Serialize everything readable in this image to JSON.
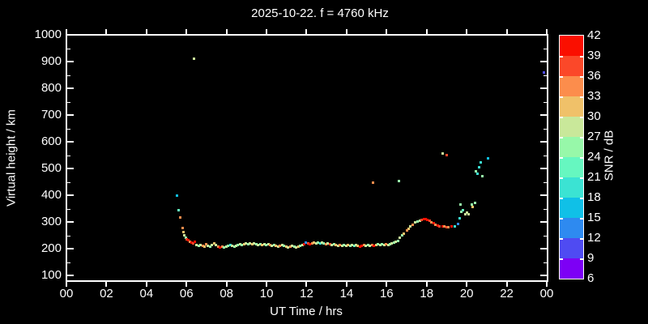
{
  "chart_data": {
    "type": "scatter",
    "title": "2025-10-22. f = 4760 kHz",
    "xlabel": "UT Time / hrs",
    "ylabel": "Virtual height / km",
    "colorbar_label": "SNR / dB",
    "background_color": "#000000",
    "axis_color": "#ffffff",
    "xlim": [
      0,
      24
    ],
    "ylim": [
      80,
      1000
    ],
    "grid": "off",
    "legend": "colorbar-right",
    "x_tick_values": [
      0,
      2,
      4,
      6,
      8,
      10,
      12,
      14,
      16,
      18,
      20,
      22,
      24
    ],
    "x_tick_labels": [
      "00",
      "02",
      "04",
      "06",
      "08",
      "10",
      "12",
      "14",
      "16",
      "18",
      "20",
      "22",
      "00"
    ],
    "y_tick_values": [
      100,
      200,
      300,
      400,
      500,
      600,
      700,
      800,
      900,
      1000
    ],
    "y_tick_labels": [
      "100",
      "200",
      "300",
      "400",
      "500",
      "600",
      "700",
      "800",
      "900",
      "1000"
    ],
    "snr_levels": [
      6,
      9,
      12,
      15,
      18,
      21,
      24,
      27,
      30,
      33,
      36,
      39,
      42
    ],
    "snr_colors": [
      "#7d00f5",
      "#4f4bf2",
      "#2e8af0",
      "#10c0e7",
      "#3be3d3",
      "#66f7c0",
      "#97f8a9",
      "#c9e89a",
      "#f0c169",
      "#fc8d4c",
      "#fb4829",
      "#fa0f00"
    ],
    "point_format": "[ut_hours, virtual_height_km, snr_color_index_low_to_high]",
    "points": [
      [
        5.52,
        400,
        3
      ],
      [
        5.6,
        345,
        5
      ],
      [
        5.67,
        316,
        9
      ],
      [
        5.8,
        276,
        9
      ],
      [
        5.84,
        262,
        8
      ],
      [
        5.9,
        250,
        7
      ],
      [
        5.96,
        242,
        6
      ],
      [
        6.02,
        235,
        10
      ],
      [
        6.08,
        232,
        11
      ],
      [
        6.16,
        227,
        9
      ],
      [
        6.24,
        223,
        11
      ],
      [
        6.32,
        220,
        10
      ],
      [
        6.42,
        226,
        11
      ],
      [
        6.5,
        214,
        7
      ],
      [
        6.6,
        211,
        6
      ],
      [
        6.7,
        214,
        7
      ],
      [
        6.8,
        211,
        9
      ],
      [
        6.9,
        208,
        8
      ],
      [
        7.0,
        217,
        9
      ],
      [
        7.08,
        211,
        7
      ],
      [
        7.18,
        208,
        6
      ],
      [
        7.28,
        214,
        7
      ],
      [
        7.38,
        220,
        8
      ],
      [
        7.48,
        214,
        7
      ],
      [
        7.58,
        208,
        9
      ],
      [
        7.68,
        205,
        11
      ],
      [
        7.78,
        208,
        9
      ],
      [
        7.88,
        205,
        6
      ],
      [
        7.98,
        208,
        7
      ],
      [
        8.08,
        211,
        6
      ],
      [
        8.18,
        214,
        4
      ],
      [
        8.28,
        211,
        7
      ],
      [
        8.38,
        208,
        6
      ],
      [
        8.48,
        211,
        7
      ],
      [
        8.58,
        214,
        6
      ],
      [
        8.68,
        217,
        7
      ],
      [
        8.78,
        214,
        6
      ],
      [
        8.88,
        217,
        8
      ],
      [
        8.98,
        220,
        7
      ],
      [
        9.08,
        217,
        6
      ],
      [
        9.18,
        220,
        7
      ],
      [
        9.28,
        217,
        8
      ],
      [
        9.38,
        220,
        7
      ],
      [
        9.48,
        217,
        6
      ],
      [
        9.58,
        214,
        7
      ],
      [
        9.68,
        217,
        6
      ],
      [
        9.78,
        214,
        8
      ],
      [
        9.88,
        217,
        7
      ],
      [
        9.98,
        214,
        6
      ],
      [
        10.08,
        217,
        7
      ],
      [
        10.18,
        214,
        9
      ],
      [
        10.28,
        211,
        7
      ],
      [
        10.38,
        214,
        6
      ],
      [
        10.48,
        211,
        8
      ],
      [
        10.58,
        208,
        7
      ],
      [
        10.68,
        211,
        9
      ],
      [
        10.78,
        214,
        7
      ],
      [
        10.88,
        211,
        6
      ],
      [
        10.98,
        208,
        8
      ],
      [
        11.08,
        205,
        7
      ],
      [
        11.18,
        208,
        9
      ],
      [
        11.28,
        211,
        7
      ],
      [
        11.38,
        208,
        6
      ],
      [
        11.48,
        205,
        7
      ],
      [
        11.58,
        208,
        8
      ],
      [
        11.68,
        211,
        6
      ],
      [
        11.78,
        214,
        7
      ],
      [
        11.88,
        217,
        11
      ],
      [
        11.97,
        223,
        2
      ],
      [
        12.07,
        220,
        10
      ],
      [
        12.17,
        217,
        11
      ],
      [
        12.27,
        220,
        9
      ],
      [
        12.37,
        223,
        8
      ],
      [
        12.47,
        220,
        7
      ],
      [
        12.57,
        223,
        6
      ],
      [
        12.67,
        220,
        4
      ],
      [
        12.77,
        223,
        7
      ],
      [
        12.87,
        220,
        6
      ],
      [
        12.97,
        217,
        9
      ],
      [
        13.07,
        220,
        7
      ],
      [
        13.17,
        217,
        10
      ],
      [
        13.27,
        214,
        7
      ],
      [
        13.37,
        217,
        6
      ],
      [
        13.47,
        214,
        8
      ],
      [
        13.57,
        211,
        7
      ],
      [
        13.67,
        214,
        9
      ],
      [
        13.77,
        211,
        7
      ],
      [
        13.87,
        214,
        6
      ],
      [
        13.97,
        211,
        7
      ],
      [
        14.07,
        214,
        8
      ],
      [
        14.17,
        211,
        6
      ],
      [
        14.27,
        214,
        7
      ],
      [
        14.37,
        211,
        5
      ],
      [
        14.47,
        214,
        7
      ],
      [
        14.57,
        211,
        8
      ],
      [
        14.67,
        208,
        11
      ],
      [
        14.77,
        211,
        11
      ],
      [
        14.87,
        214,
        9
      ],
      [
        14.97,
        211,
        7
      ],
      [
        15.07,
        214,
        6
      ],
      [
        15.17,
        211,
        7
      ],
      [
        15.27,
        214,
        9
      ],
      [
        15.37,
        211,
        11
      ],
      [
        15.47,
        214,
        8
      ],
      [
        15.57,
        217,
        6
      ],
      [
        15.67,
        214,
        7
      ],
      [
        15.77,
        217,
        6
      ],
      [
        15.87,
        214,
        7
      ],
      [
        15.97,
        217,
        9
      ],
      [
        16.07,
        214,
        7
      ],
      [
        16.17,
        217,
        6
      ],
      [
        16.27,
        220,
        7
      ],
      [
        16.37,
        223,
        6
      ],
      [
        16.47,
        226,
        7
      ],
      [
        16.57,
        230,
        6
      ],
      [
        16.67,
        241,
        7
      ],
      [
        16.77,
        250,
        6
      ],
      [
        16.87,
        257,
        8
      ],
      [
        17.0,
        267,
        9
      ],
      [
        17.1,
        275,
        8
      ],
      [
        17.2,
        283,
        7
      ],
      [
        17.3,
        290,
        9
      ],
      [
        17.43,
        297,
        7
      ],
      [
        17.55,
        303,
        6
      ],
      [
        17.65,
        305,
        7
      ],
      [
        17.75,
        308,
        10
      ],
      [
        17.85,
        310,
        11
      ],
      [
        17.95,
        311,
        11
      ],
      [
        18.05,
        309,
        11
      ],
      [
        18.15,
        305,
        10
      ],
      [
        18.25,
        300,
        9
      ],
      [
        18.35,
        295,
        11
      ],
      [
        18.45,
        290,
        9
      ],
      [
        18.55,
        287,
        11
      ],
      [
        18.65,
        284,
        10
      ],
      [
        18.78,
        283,
        11
      ],
      [
        18.88,
        282,
        9
      ],
      [
        19.0,
        281,
        10
      ],
      [
        19.1,
        280,
        9
      ],
      [
        19.25,
        282,
        11
      ],
      [
        19.4,
        283,
        4
      ],
      [
        19.55,
        292,
        2
      ],
      [
        19.65,
        315,
        4
      ],
      [
        19.7,
        365,
        6
      ],
      [
        19.75,
        337,
        6
      ],
      [
        19.8,
        345,
        5
      ],
      [
        19.95,
        330,
        7
      ],
      [
        20.0,
        335,
        7
      ],
      [
        20.1,
        330,
        7
      ],
      [
        20.25,
        365,
        6
      ],
      [
        20.3,
        355,
        8
      ],
      [
        20.4,
        372,
        6
      ],
      [
        18.8,
        555,
        7
      ],
      [
        19.0,
        550,
        10
      ],
      [
        20.45,
        490,
        6
      ],
      [
        20.52,
        481,
        4
      ],
      [
        20.62,
        505,
        4
      ],
      [
        20.72,
        523,
        4
      ],
      [
        20.78,
        470,
        6
      ],
      [
        21.06,
        538,
        3
      ],
      [
        6.37,
        911,
        7
      ],
      [
        15.33,
        448,
        9
      ],
      [
        16.63,
        452,
        6
      ],
      [
        23.85,
        858,
        1
      ]
    ]
  }
}
